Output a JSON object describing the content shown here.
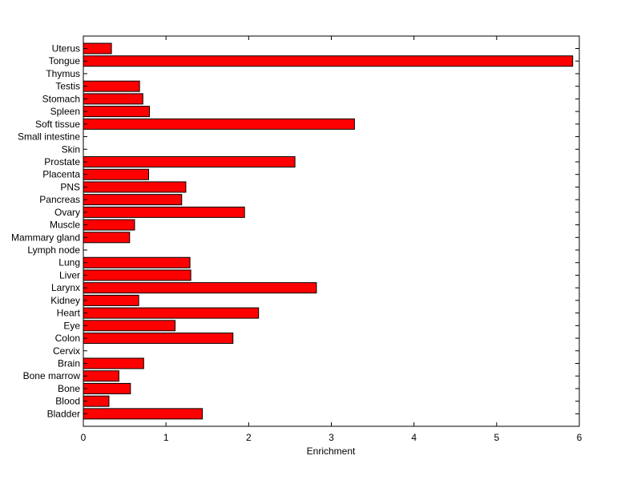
{
  "chart_data": {
    "type": "bar",
    "orientation": "horizontal",
    "categories": [
      "Uterus",
      "Tongue",
      "Thymus",
      "Testis",
      "Stomach",
      "Spleen",
      "Soft tissue",
      "Small intestine",
      "Skin",
      "Prostate",
      "Placenta",
      "PNS",
      "Pancreas",
      "Ovary",
      "Muscle",
      "Mammary gland",
      "Lymph node",
      "Lung",
      "Liver",
      "Larynx",
      "Kidney",
      "Heart",
      "Eye",
      "Colon",
      "Cervix",
      "Brain",
      "Bone marrow",
      "Bone",
      "Blood",
      "Bladder"
    ],
    "values": [
      0.34,
      5.92,
      0,
      0.68,
      0.72,
      0.8,
      3.28,
      0,
      0,
      2.56,
      0.79,
      1.24,
      1.19,
      1.95,
      0.62,
      0.56,
      0,
      1.29,
      1.3,
      2.82,
      0.67,
      2.12,
      1.11,
      1.81,
      0,
      0.73,
      0.43,
      0.57,
      0.31,
      1.44
    ],
    "xlabel": "Enrichment",
    "ylabel": "",
    "title": "",
    "xlim": [
      0,
      6
    ],
    "xticks": [
      "0",
      "1",
      "2",
      "3",
      "4",
      "5",
      "6"
    ],
    "grid": false,
    "bar_color": "#ff0000",
    "bar_edge_color": "#000000"
  }
}
